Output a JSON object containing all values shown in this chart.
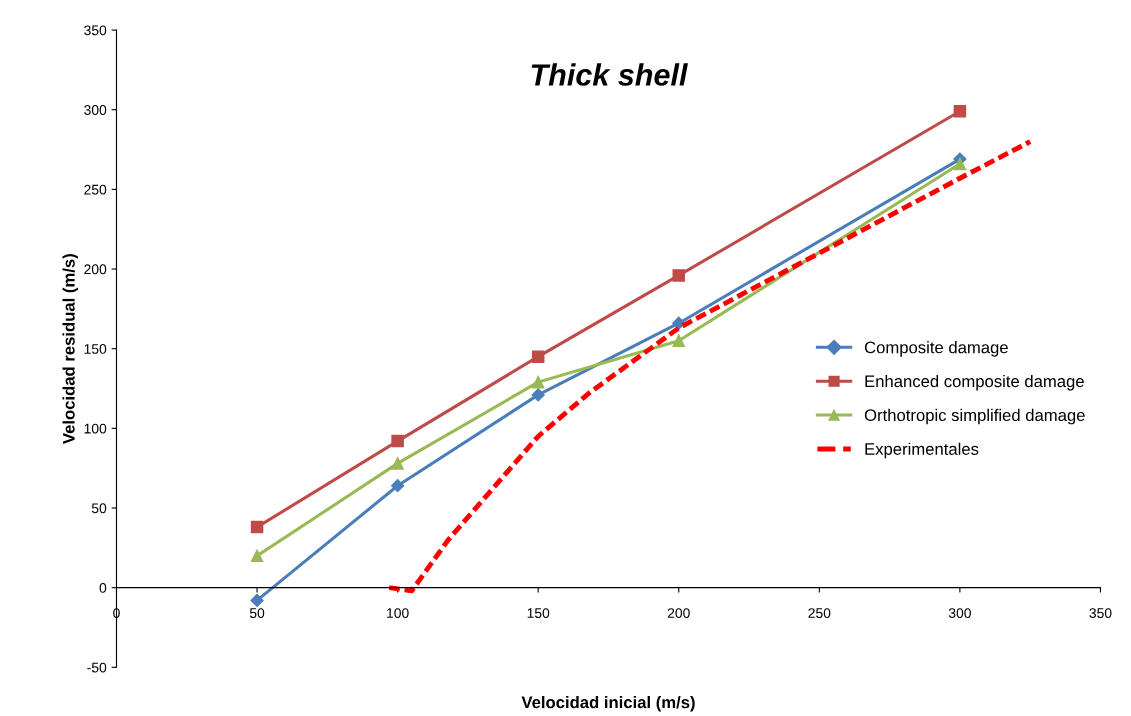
{
  "chart_data": {
    "type": "line",
    "title": "Thick shell",
    "xlabel": "Velocidad inicial (m/s)",
    "ylabel": "Velocidad residual (m/s)",
    "xlim": [
      0,
      350
    ],
    "xticks": [
      0,
      50,
      100,
      150,
      200,
      250,
      300,
      350
    ],
    "ylim": [
      -50,
      350
    ],
    "yticks": [
      -50,
      0,
      50,
      100,
      150,
      200,
      250,
      300,
      350
    ],
    "grid": false,
    "legend": "right",
    "series": [
      {
        "name": "Composite damage",
        "color": "#4a7ebb",
        "marker": "diamond",
        "line_style": "solid",
        "x": [
          50,
          100,
          150,
          200,
          300
        ],
        "values": [
          -8,
          64,
          121,
          166,
          269
        ]
      },
      {
        "name": "Enhanced composite damage",
        "color": "#be4b48",
        "marker": "square",
        "line_style": "solid",
        "x": [
          50,
          100,
          150,
          200,
          300
        ],
        "values": [
          38,
          92,
          145,
          196,
          299
        ]
      },
      {
        "name": "Orthotropic simplified damage",
        "color": "#98b954",
        "marker": "triangle",
        "line_style": "solid",
        "x": [
          50,
          100,
          150,
          200,
          300
        ],
        "values": [
          20,
          78,
          129,
          155,
          266
        ]
      },
      {
        "name": "Experimentales",
        "color": "#ff0000",
        "marker": "none",
        "line_style": "dashed",
        "x": [
          97,
          105,
          118,
          150,
          168,
          200,
          250,
          300,
          325
        ],
        "values": [
          0,
          -2,
          30,
          95,
          122,
          163,
          210,
          257,
          280
        ]
      }
    ]
  }
}
